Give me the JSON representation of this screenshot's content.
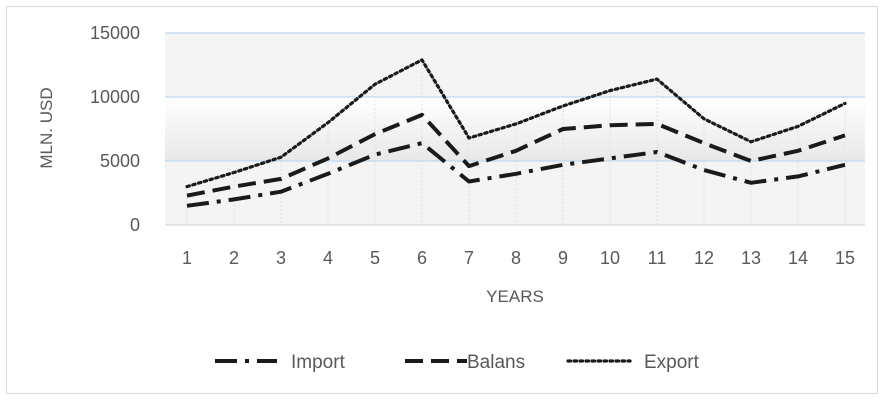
{
  "chart_data": {
    "type": "line",
    "title": "",
    "xlabel": "YEARS",
    "ylabel": "MLN. USD",
    "x": [
      1,
      2,
      3,
      4,
      5,
      6,
      7,
      8,
      9,
      10,
      11,
      12,
      13,
      14,
      15
    ],
    "x_tick_labels": [
      "1",
      "2",
      "3",
      "4",
      "5",
      "6",
      "7",
      "8",
      "9",
      "10",
      "11",
      "12",
      "13",
      "14",
      "15"
    ],
    "ylim": [
      0,
      15000
    ],
    "y_ticks": [
      0,
      5000,
      10000,
      15000
    ],
    "y_tick_labels": [
      "0",
      "5000",
      "10000",
      "15000"
    ],
    "grid": "horizontal",
    "legend_position": "bottom",
    "series": [
      {
        "name": "Import",
        "style": "dash-dot",
        "color": "#1a1a1a",
        "values": [
          1500,
          2000,
          2600,
          4000,
          5500,
          6400,
          3400,
          4000,
          4700,
          5200,
          5700,
          4300,
          3300,
          3800,
          4700
        ]
      },
      {
        "name": "Balans",
        "style": "dashed",
        "color": "#1a1a1a",
        "values": [
          2300,
          3000,
          3600,
          5200,
          7100,
          8600,
          4600,
          5800,
          7500,
          7800,
          7900,
          6400,
          5000,
          5800,
          7000
        ]
      },
      {
        "name": "Export",
        "style": "dotted",
        "color": "#1a1a1a",
        "values": [
          3000,
          4100,
          5300,
          8000,
          11000,
          12900,
          6800,
          7900,
          9300,
          10500,
          11400,
          8300,
          6500,
          7700,
          9500
        ]
      }
    ],
    "legend": {
      "items": [
        "Import",
        "Balans",
        "Export"
      ]
    },
    "colors": {
      "grid": "#bdd7ee",
      "plot_band_top": "#ffffff",
      "plot_band_bottom": "#e8e8e8",
      "text": "#595959"
    }
  }
}
